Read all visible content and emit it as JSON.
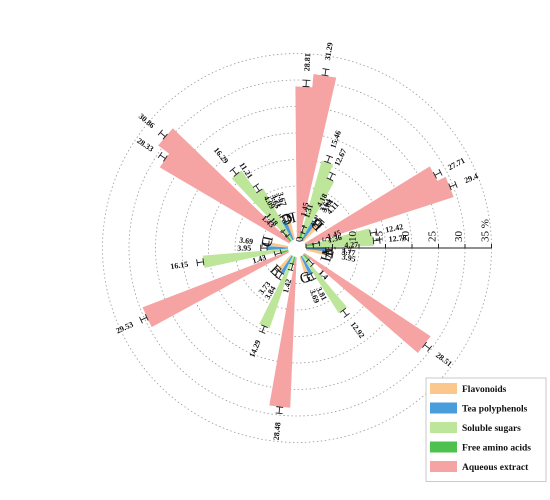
{
  "chart_data": {
    "type": "radial-bar",
    "title": "",
    "axis": {
      "ticks": [
        "0",
        "5",
        "10",
        "15",
        "20",
        "25",
        "30"
      ],
      "tick_values": [
        0,
        5,
        10,
        15,
        20,
        25,
        30
      ],
      "unit": "35 %",
      "max": 35,
      "grid": true
    },
    "categories": [
      "A",
      "B",
      "C",
      "D",
      "E",
      "G",
      "H",
      "I",
      "K"
    ],
    "series": [
      {
        "name": "Flavonoids",
        "color": "#FBC78C",
        "values": [
          3.77,
          3.84,
          3.71,
          3.69,
          3.73,
          3.69,
          3.95,
          4.11,
          3.67
        ]
      },
      {
        "name": "Tea polyphenols",
        "color": "#4A9DDB",
        "values": [
          4.27,
          4.18,
          4.09,
          3.95,
          3.84,
          3.81,
          3.7,
          3.64,
          3.65
        ]
      },
      {
        "name": "Soluble sugars",
        "color": "#BDE69B",
        "values": [
          12.42,
          15.46,
          16.29,
          16.15,
          14.29,
          12.92,
          12.78,
          12.67,
          11.21
        ]
      },
      {
        "name": "Free amino acids",
        "color": "#4FC14F",
        "values": [
          1.45,
          1.45,
          1.43,
          1.43,
          1.42,
          1.4,
          1.36,
          1.31,
          1.18
        ]
      },
      {
        "name": "Aqueous extract",
        "color": "#F6A3A3",
        "values": [
          27.71,
          28.81,
          28.33,
          29.53,
          28.48,
          28.51,
          29.4,
          31.29,
          30.86
        ]
      }
    ],
    "value_labels": {
      "Flavonoids": [
        "3.77",
        "3.84",
        "3.71",
        "3.69",
        "3.73",
        "3.69",
        "3.95",
        "4.11",
        "3.67"
      ],
      "Tea polyphenols": [
        "4.27",
        "4.18",
        "4.09",
        "3.95",
        "3.84",
        "3.81",
        "3.7",
        "3.64",
        "3.65"
      ],
      "Soluble sugars": [
        "12.42",
        "15.46",
        "16.29",
        "16.15",
        "14.29",
        "12.92",
        "12.78",
        "12.67",
        "11.21"
      ],
      "Free amino acids": [
        "1.45",
        "1.45",
        "1.43",
        "1.43",
        "1.42",
        "1.4",
        "1.36",
        "1.31",
        "1.18"
      ],
      "Aqueous extract": [
        "27.71",
        "28.81",
        "28.33",
        "29.53",
        "28.48",
        "28.51",
        "29.4",
        "31.29",
        "30.86"
      ]
    },
    "error_bars": true,
    "legend": {
      "placement": "bottom-right"
    }
  }
}
